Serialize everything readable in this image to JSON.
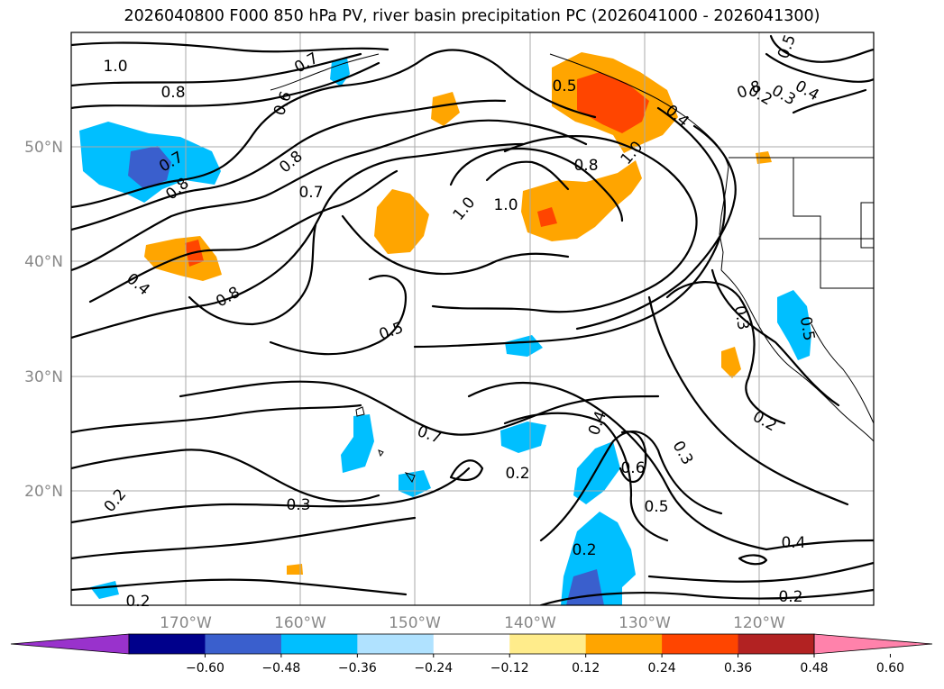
{
  "title": "2026040800 F000 850 hPa PV, river basin precipitation PC (2026041000 - 2026041300)",
  "map": {
    "lon_labels": [
      "170°W",
      "160°W",
      "150°W",
      "140°W",
      "130°W",
      "120°W"
    ],
    "lat_labels": [
      "50°N",
      "40°N",
      "30°N",
      "20°N"
    ],
    "extent": {
      "lon_min": -180,
      "lon_max": -110,
      "lat_min": 10,
      "lat_max": 60
    },
    "gridlines": true,
    "contour_labels": [
      "1.0",
      "0.8",
      "0.7",
      "0.6",
      "0.7",
      "0.8",
      "0.7",
      "0.8",
      "0.4",
      "0.8",
      "0.5",
      "1.0",
      "1.0",
      "0.5",
      "0.8",
      "1.0",
      "0.8",
      "0.4",
      "0.5",
      "0.2",
      "0.3",
      "0.4",
      "0.5",
      "0.3",
      "0.7",
      "0.2",
      "0.3",
      "0.2",
      "0.4",
      "0.6",
      "0.5",
      "0.3",
      "0.2",
      "0.2",
      "0.2",
      "0.4",
      "0.2",
      "0.2"
    ]
  },
  "colorbar": {
    "ticks": [
      "−0.60",
      "−0.48",
      "−0.36",
      "−0.24",
      "−0.12",
      "0.12",
      "0.24",
      "0.36",
      "0.48",
      "0.60"
    ],
    "colors": [
      "#9932cc",
      "#00008b",
      "#3a5fcd",
      "#00bfff",
      "#b0e2ff",
      "#ffffff",
      "#ffec8b",
      "#ffa500",
      "#ff4500",
      "#b22222",
      "#ff82ab"
    ]
  }
}
